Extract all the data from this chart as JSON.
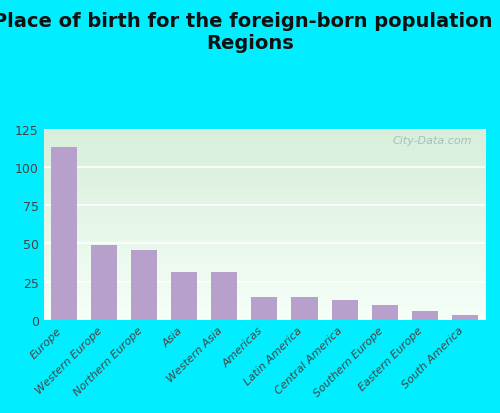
{
  "title": "Place of birth for the foreign-born population -\nRegions",
  "categories": [
    "Europe",
    "Western Europe",
    "Northern Europe",
    "Asia",
    "Western Asia",
    "Americas",
    "Latin America",
    "Central America",
    "Southern Europe",
    "Eastern Europe",
    "South America"
  ],
  "values": [
    113,
    49,
    46,
    31,
    31,
    15,
    15,
    13,
    10,
    6,
    3
  ],
  "bar_color": "#b8a0cc",
  "background_outer": "#00eeff",
  "ylim": [
    0,
    125
  ],
  "yticks": [
    0,
    25,
    50,
    75,
    100,
    125
  ],
  "title_fontsize": 14,
  "tick_fontsize": 8,
  "watermark": "City-Data.com",
  "grad_top_left": "#e8f5e8",
  "grad_bottom_right": "#f5fff5",
  "grid_color": "#ddeecc"
}
